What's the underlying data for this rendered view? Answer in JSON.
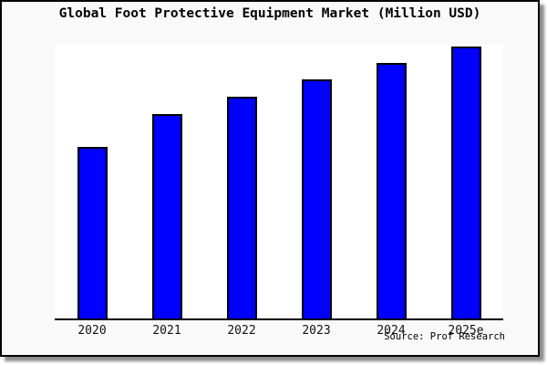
{
  "title": "Global Foot Protective Equipment Market (Million USD)",
  "source": "Source: Prof Research",
  "colors": {
    "bar_fill": "#0000ff",
    "bar_border": "#000000",
    "figure_bg": "#f9f9f9",
    "plot_bg": "#ffffff",
    "axis_line": "#000000",
    "frame_border": "#000000",
    "text": "#000000"
  },
  "chart_data": {
    "type": "bar",
    "title": "Global Foot Protective Equipment Market (Million USD)",
    "categories": [
      "2020",
      "2021",
      "2022",
      "2023",
      "2024",
      "2025e"
    ],
    "values": [
      189,
      226,
      245,
      264,
      282,
      300
    ],
    "values_note": "y-axis has no tick labels or gridlines; values are relative units proportional to measured bar heights",
    "xlabel": "",
    "ylabel": "",
    "ylim": [
      0,
      302
    ],
    "grid": false,
    "legend": false,
    "bar_style": {
      "fill": "#0000ff",
      "edge": "#000000"
    },
    "annotations": [
      "Source: Prof Research"
    ]
  }
}
